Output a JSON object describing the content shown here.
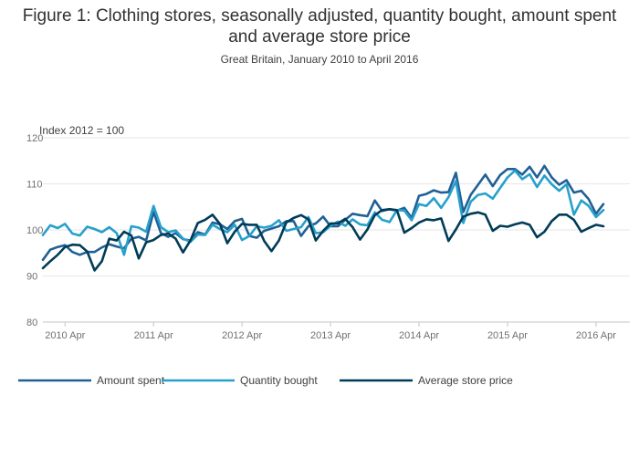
{
  "chart_data": {
    "type": "line",
    "title": "Figure 1: Clothing stores, seasonally adjusted, quantity bought, amount spent and average store price",
    "subtitle": "Great Britain, January 2010 to April 2016",
    "ylabel": "Index 2012 = 100",
    "ylim": [
      80,
      120
    ],
    "yticks": [
      80,
      90,
      100,
      110,
      120
    ],
    "xtick_labels": [
      "2010 Apr",
      "2011 Apr",
      "2012 Apr",
      "2013 Apr",
      "2014 Apr",
      "2015 Apr",
      "2016 Apr"
    ],
    "xtick_index": [
      3,
      15,
      27,
      39,
      51,
      63,
      75
    ],
    "x_start": "2010 Jan",
    "x_end": "2016 Apr",
    "series": [
      {
        "name": "Amount spent",
        "color": "#206095",
        "values": [
          93.5,
          95.7,
          96.3,
          96.7,
          95.2,
          94.6,
          95.2,
          95.2,
          96.2,
          96.9,
          96.4,
          96.0,
          98.1,
          98.5,
          97.7,
          103.9,
          99.3,
          98.5,
          99.3,
          98.0,
          97.7,
          99.5,
          99.0,
          101.6,
          101.2,
          100.2,
          101.9,
          102.4,
          98.7,
          98.3,
          99.8,
          100.3,
          100.8,
          101.9,
          101.9,
          98.7,
          100.8,
          101.4,
          102.9,
          100.8,
          100.8,
          102.2,
          103.5,
          103.2,
          103.0,
          106.4,
          104.1,
          104.5,
          104.2,
          104.8,
          102.6,
          107.4,
          107.8,
          108.6,
          108.1,
          108.2,
          112.4,
          103.9,
          107.6,
          109.8,
          112.0,
          109.5,
          111.9,
          113.2,
          113.2,
          112.0,
          113.7,
          111.4,
          113.9,
          111.4,
          109.8,
          110.8,
          108.1,
          108.5,
          106.7,
          103.5,
          105.6
        ]
      },
      {
        "name": "Quantity bought",
        "color": "#27a0cc",
        "values": [
          98.9,
          101.0,
          100.4,
          101.3,
          99.2,
          98.8,
          100.7,
          100.2,
          99.5,
          100.6,
          99.3,
          94.6,
          100.8,
          100.5,
          99.6,
          105.2,
          100.6,
          99.5,
          99.9,
          98.1,
          97.4,
          99.0,
          98.9,
          101.1,
          100.2,
          99.5,
          101.1,
          97.8,
          98.7,
          100.8,
          100.5,
          100.9,
          102.1,
          99.8,
          100.2,
          100.6,
          102.8,
          99.3,
          99.5,
          100.9,
          101.8,
          100.9,
          102.3,
          101.2,
          101.0,
          103.8,
          102.2,
          101.7,
          104.3,
          104.2,
          102.1,
          105.6,
          105.2,
          106.9,
          104.8,
          107.1,
          110.6,
          101.5,
          106.1,
          107.6,
          107.9,
          106.8,
          109.1,
          111.4,
          112.9,
          111.0,
          112.1,
          109.3,
          111.8,
          109.9,
          108.5,
          109.9,
          103.3,
          106.4,
          105.2,
          102.8,
          104.3
        ]
      },
      {
        "name": "Average store price",
        "color": "#003c57",
        "values": [
          91.7,
          93.2,
          94.6,
          96.3,
          96.8,
          96.7,
          95.3,
          91.2,
          93.2,
          98.1,
          97.7,
          99.6,
          98.8,
          93.8,
          97.3,
          97.8,
          98.9,
          99.2,
          98.1,
          95.1,
          97.7,
          101.5,
          102.2,
          103.3,
          101.3,
          97.1,
          99.6,
          101.3,
          101.1,
          101.1,
          97.6,
          95.4,
          97.7,
          101.6,
          102.6,
          103.2,
          102.3,
          97.7,
          99.8,
          101.4,
          101.4,
          102.4,
          100.6,
          97.9,
          100.1,
          103.2,
          104.3,
          104.5,
          104.3,
          99.4,
          100.4,
          101.6,
          102.3,
          102.1,
          102.5,
          97.6,
          100.1,
          102.9,
          103.5,
          103.8,
          103.3,
          99.8,
          100.9,
          100.7,
          101.2,
          101.6,
          101.1,
          98.4,
          99.6,
          101.9,
          103.3,
          103.3,
          102.2,
          99.6,
          100.4,
          101.1,
          100.8
        ]
      }
    ]
  }
}
